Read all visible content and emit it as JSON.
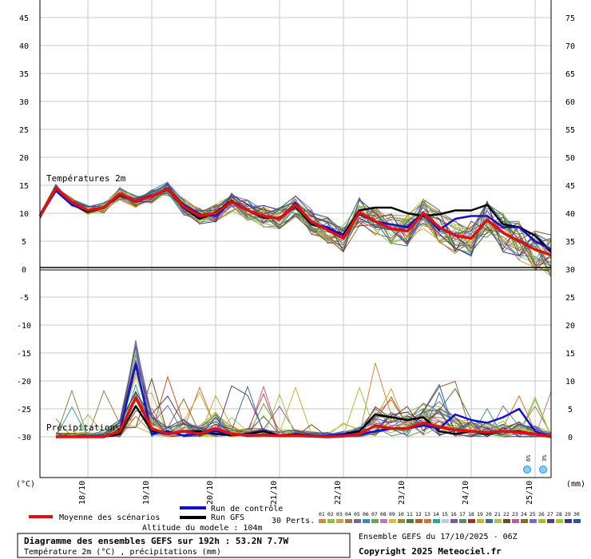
{
  "chart_data": {
    "type": "line",
    "title": "Diagramme des ensembles GEFS sur 192h : 53.2N 7.7W",
    "subtitle": "Température 2m (°C) , précipitations (mm)",
    "run_info": "Ensemble GEFS du 17/10/2025 - 06Z",
    "copyright": "Copyright 2025 Meteociel.fr",
    "altitude": "Altitude du modele : 104m",
    "left_axis_unit": "(°C)",
    "right_axis_unit": "(mm)",
    "left_ticks": [
      "45",
      "40",
      "35",
      "30",
      "25",
      "20",
      "15",
      "10",
      "5",
      "0",
      "-5",
      "-10",
      "-15",
      "-20",
      "-25",
      "-30"
    ],
    "right_ticks": [
      "75",
      "70",
      "65",
      "60",
      "55",
      "50",
      "45",
      "40",
      "35",
      "30",
      "25",
      "20",
      "15",
      "10",
      "5",
      "0"
    ],
    "x_ticks": [
      "18/10",
      "19/10",
      "20/10",
      "21/10",
      "22/10",
      "23/10",
      "24/10",
      "25/10"
    ],
    "temp_section_label": "Températures 2m",
    "precip_section_label": "Précipitations",
    "legend": {
      "mean": "Moyenne des scénarios",
      "control": "Run de contrôle",
      "gfs": "Run GFS",
      "perts_label": "30 Perts.",
      "pert_numbers": [
        "01",
        "02",
        "03",
        "04",
        "05",
        "06",
        "07",
        "08",
        "09",
        "10",
        "11",
        "12",
        "13",
        "14",
        "15",
        "16",
        "17",
        "18",
        "19",
        "20",
        "21",
        "22",
        "23",
        "24",
        "25",
        "26",
        "27",
        "28",
        "29",
        "30"
      ],
      "pert_colors": [
        "#d08a3c",
        "#8fbc5a",
        "#c9a24a",
        "#9e7a4a",
        "#6b6b9e",
        "#3b8fb5",
        "#6aa84f",
        "#c27ba0",
        "#d9b84a",
        "#8f8f3a",
        "#4a7a4a",
        "#b05f2a",
        "#d4703a",
        "#33a38f",
        "#c9c9c9",
        "#7a5a9e",
        "#5a8f5a",
        "#8a3a3a",
        "#c7b23a",
        "#3a6e8a",
        "#a8c24a",
        "#6a4a2a",
        "#c45a9e",
        "#8a6a2a",
        "#6e6ec9",
        "#aab84a",
        "#5a3a7a",
        "#9ec93a",
        "#3a3a8a",
        "#2a5a9e"
      ]
    },
    "snow": [
      {
        "time": 183,
        "label": "6%"
      },
      {
        "time": 189,
        "label": "3%"
      }
    ],
    "x_unit": "hours",
    "temperature": {
      "x": [
        0,
        6,
        12,
        18,
        24,
        30,
        36,
        42,
        48,
        54,
        60,
        66,
        72,
        78,
        84,
        90,
        96,
        102,
        108,
        114,
        120,
        126,
        132,
        138,
        144,
        150,
        156,
        162,
        168,
        174,
        180,
        186,
        192
      ],
      "mean": [
        9.5,
        14.5,
        12,
        10.5,
        11,
        13.5,
        12.2,
        13,
        14.3,
        11.2,
        9.5,
        10,
        12,
        10.5,
        9.5,
        9,
        11.5,
        8.5,
        7,
        5.5,
        10.2,
        8.5,
        7.2,
        6.8,
        10,
        7.5,
        6,
        5.5,
        8.8,
        6.5,
        5,
        3.5,
        2.5
      ],
      "control": [
        9.5,
        14,
        11.5,
        10.5,
        11,
        13.5,
        12,
        13,
        14.5,
        11.5,
        9.8,
        9.5,
        12,
        10.5,
        9.5,
        9,
        11.8,
        8.2,
        7.5,
        6,
        9.8,
        8.5,
        8,
        7.5,
        10,
        7,
        9,
        9.5,
        9.5,
        7.5,
        7.5,
        5,
        3.5
      ],
      "gfs": [
        9.5,
        14.2,
        11.8,
        10.2,
        11,
        13.2,
        12.3,
        13.1,
        14.2,
        11,
        9,
        10.2,
        12.2,
        10.5,
        9.2,
        9.2,
        11.2,
        8,
        7.2,
        6.2,
        10.5,
        11,
        11,
        10,
        9.5,
        9.8,
        10.5,
        10.5,
        11.5,
        8,
        7.5,
        6,
        3
      ]
    },
    "precipitation": {
      "x": [
        6,
        12,
        18,
        24,
        30,
        36,
        42,
        48,
        54,
        60,
        66,
        72,
        78,
        84,
        90,
        96,
        102,
        108,
        114,
        120,
        126,
        132,
        138,
        144,
        150,
        156,
        162,
        168,
        174,
        180,
        186,
        192
      ],
      "mean": [
        0,
        0,
        0,
        0,
        1,
        7,
        1.5,
        0.5,
        1,
        0.5,
        1.5,
        0.5,
        0.3,
        0.3,
        0.2,
        0.2,
        0.1,
        0,
        0.1,
        0.5,
        2,
        1.5,
        1.5,
        2.5,
        1.8,
        1.2,
        1,
        0.8,
        1,
        0.8,
        0.5,
        0
      ],
      "control": [
        0,
        0,
        0,
        0,
        1,
        13,
        0.5,
        1,
        0.2,
        0.5,
        1,
        0.5,
        0.2,
        0.3,
        0.2,
        0.5,
        0.2,
        0.2,
        0.5,
        0.4,
        1,
        1.5,
        1.5,
        2,
        1.5,
        4,
        3,
        2.5,
        3.5,
        5,
        1,
        0
      ],
      "gfs": [
        0,
        0,
        0,
        0,
        0.5,
        5.5,
        1,
        0.5,
        1,
        1,
        0.5,
        0.3,
        0.5,
        1,
        0.2,
        0.5,
        0.2,
        0,
        0.5,
        1,
        4,
        3.5,
        3,
        3.5,
        1,
        0.5,
        1,
        0.5,
        1,
        1,
        0.5,
        0
      ]
    }
  }
}
